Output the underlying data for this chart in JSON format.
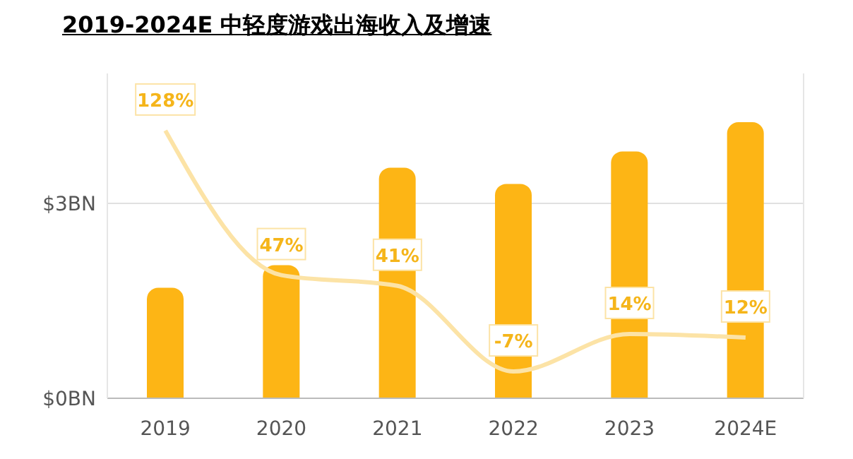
{
  "chart_data": {
    "type": "bar",
    "title": "2019-2024E 中轻度游戏出海收入及增速",
    "categories": [
      "2019",
      "2020",
      "2021",
      "2022",
      "2023",
      "2024E"
    ],
    "series": [
      {
        "color": "#fdb515",
        "values": [
          1.7,
          2.05,
          3.55,
          3.3,
          3.8,
          4.25
        ]
      },
      {
        "type": "line",
        "axis": "y2",
        "color": "#fce3a6",
        "values": [
          128,
          47,
          41,
          -7,
          14,
          12
        ],
        "value_labels": [
          "128%",
          "47%",
          "41%",
          "-7%",
          "14%",
          "12%"
        ]
      }
    ],
    "ylim": [
      0,
      5
    ],
    "yticks": [
      {
        "value": 0,
        "label": "$0BN"
      },
      {
        "value": 3,
        "label": "$3BN"
      }
    ],
    "y2lim": [
      -22,
      160
    ],
    "grid": "y",
    "legend": false,
    "tick_labels": "xy"
  }
}
